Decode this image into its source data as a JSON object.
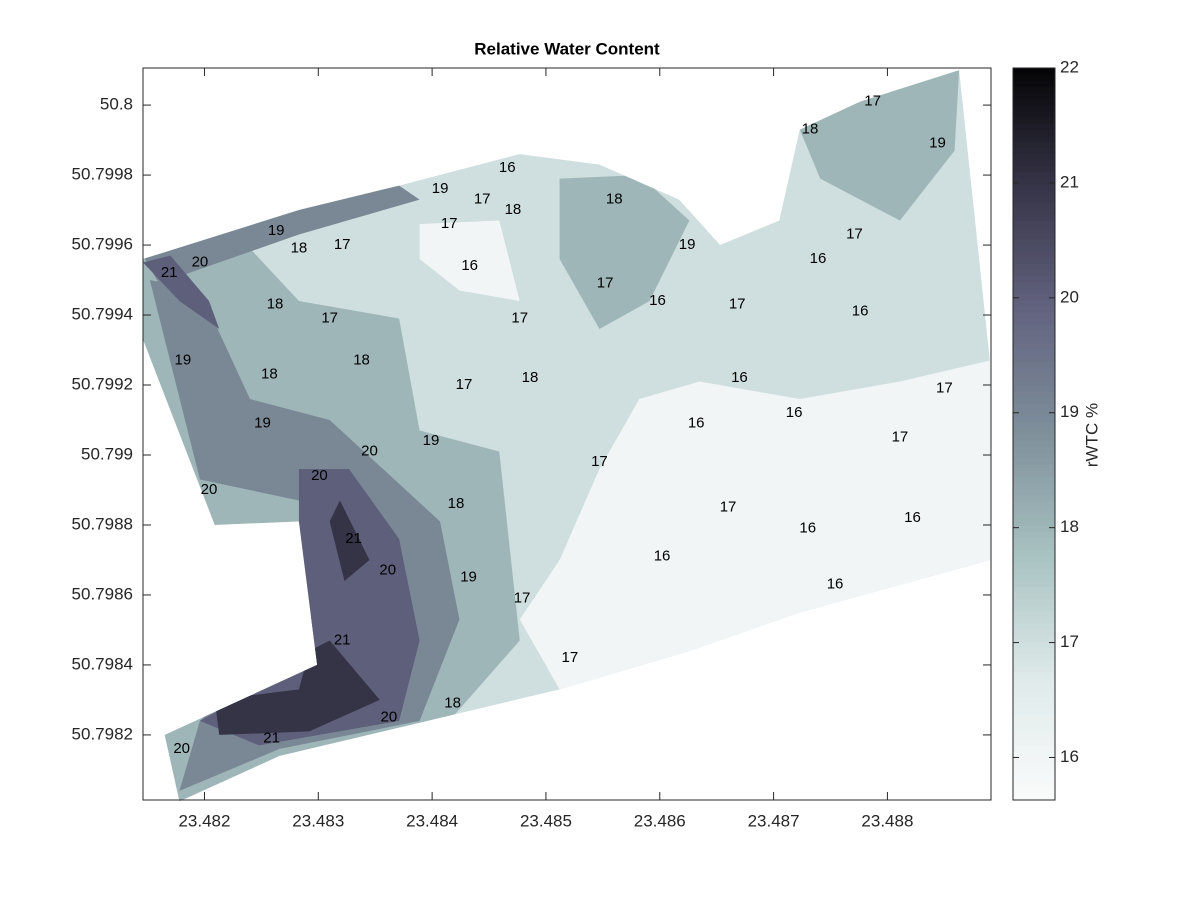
{
  "chart_data": {
    "type": "contourf",
    "title": "Relative Water Content",
    "xlim": [
      23.48146,
      23.48891
    ],
    "ylim": [
      50.798014,
      50.800106
    ],
    "xticks": [
      23.482,
      23.483,
      23.484,
      23.485,
      23.486,
      23.487,
      23.488
    ],
    "yticks": [
      50.7982,
      50.7984,
      50.7986,
      50.7988,
      50.799,
      50.7992,
      50.7994,
      50.7996,
      50.7998,
      50.8
    ],
    "colorbar": {
      "label": "rWTC %",
      "clim": [
        15.63,
        22
      ],
      "ticks": [
        16,
        17,
        18,
        19,
        20,
        21,
        22
      ],
      "colormap": [
        "#fafbfb",
        "#dfeaea",
        "#a9c2c2",
        "#7f909b",
        "#636480",
        "#38364a",
        "#050507"
      ]
    },
    "regions": [
      {
        "level": 17,
        "x": [
          23.48146,
          23.48146,
          23.48209,
          23.48283,
          23.48299,
          23.48165,
          23.48178,
          23.48266,
          23.48512,
          23.48626,
          23.48723,
          23.4889,
          23.4889,
          23.48877,
          23.48863,
          23.48776,
          23.48723,
          23.48705,
          23.48653,
          23.48617,
          23.48547,
          23.48477,
          23.48371,
          23.48283
        ],
        "y": [
          50.79956,
          50.79933,
          50.7988,
          50.79881,
          50.7984,
          50.7982,
          50.79801,
          50.79814,
          50.79833,
          50.79844,
          50.79855,
          50.7987,
          50.79927,
          50.79967,
          50.8001,
          50.80001,
          50.79993,
          50.79967,
          50.7996,
          50.79973,
          50.79983,
          50.79986,
          50.79977,
          50.7997
        ]
      },
      {
        "level": 16,
        "x": [
          23.48512,
          23.48626,
          23.48723,
          23.4889,
          23.4889,
          23.48811,
          23.48723,
          23.48635,
          23.48582,
          23.48547,
          23.48512,
          23.48477
        ],
        "y": [
          50.79833,
          50.79844,
          50.79855,
          50.7987,
          50.79927,
          50.79921,
          50.79916,
          50.79921,
          50.79916,
          50.79896,
          50.7987,
          50.79853
        ]
      },
      {
        "level": 16,
        "x": [
          23.48389,
          23.48459,
          23.48477,
          23.48424,
          23.48389
        ],
        "y": [
          50.79966,
          50.79967,
          50.79944,
          50.79947,
          50.79956
        ]
      },
      {
        "level": 18,
        "x": [
          23.48146,
          23.48146,
          23.48209,
          23.48283,
          23.48299,
          23.48165,
          23.48178,
          23.48266,
          23.48415,
          23.48477,
          23.48459,
          23.48389,
          23.48371,
          23.48283,
          23.4824
        ],
        "y": [
          50.79957,
          50.79933,
          50.7988,
          50.79881,
          50.7984,
          50.7982,
          50.79801,
          50.79814,
          50.79824,
          50.79847,
          50.79901,
          50.79907,
          50.79939,
          50.79944,
          50.79959
        ]
      },
      {
        "level": 18,
        "x": [
          23.48512,
          23.48582,
          23.48626,
          23.48591,
          23.48547,
          23.48512
        ],
        "y": [
          50.79979,
          50.7998,
          50.79967,
          50.79944,
          50.79936,
          50.79956
        ]
      },
      {
        "level": 18,
        "x": [
          23.48723,
          23.48776,
          23.48863,
          23.48859,
          23.48811,
          23.48776,
          23.48741
        ],
        "y": [
          50.79993,
          50.80001,
          50.8001,
          50.79987,
          50.79967,
          50.79973,
          50.79979
        ]
      },
      {
        "level": 19,
        "x": [
          23.48152,
          23.48196,
          23.48283,
          23.4831,
          23.48196,
          23.48178,
          23.48266,
          23.48389,
          23.48424,
          23.48407,
          23.4831,
          23.4824,
          23.48196
        ],
        "y": [
          50.7995,
          50.79893,
          50.79887,
          50.79859,
          50.79824,
          50.79804,
          50.79816,
          50.79824,
          50.79853,
          50.79881,
          50.7991,
          50.79916,
          50.79947
        ]
      },
      {
        "level": 19,
        "x": [
          23.48146,
          23.48283,
          23.48371,
          23.48389,
          23.48283,
          23.4816
        ],
        "y": [
          50.79957,
          50.79971,
          50.79977,
          50.79973,
          50.79963,
          50.79949
        ]
      },
      {
        "level": 20,
        "x": [
          23.48283,
          23.48292,
          23.48196,
          23.48248,
          23.48371,
          23.48389,
          23.48371,
          23.48327,
          23.48283
        ],
        "y": [
          50.79864,
          50.79841,
          50.79824,
          50.79817,
          50.79824,
          50.79847,
          50.79876,
          50.79896,
          50.79896
        ]
      },
      {
        "level": 20,
        "x": [
          23.48146,
          23.48178,
          23.48213,
          23.48204,
          23.4817
        ],
        "y": [
          50.79955,
          50.79944,
          50.79936,
          50.79944,
          50.79957
        ]
      },
      {
        "level": 21,
        "x": [
          23.48209,
          23.48283,
          23.48292,
          23.4831,
          23.48354,
          23.48292,
          23.48213
        ],
        "y": [
          50.7983,
          50.79833,
          50.79844,
          50.79847,
          50.7983,
          50.79821,
          50.7982
        ]
      },
      {
        "level": 21,
        "x": [
          23.48319,
          23.48345,
          23.48323,
          23.4831
        ],
        "y": [
          50.79887,
          50.7987,
          50.79864,
          50.79881
        ]
      }
    ],
    "contour_labels": {
      "x": [
        23.48466,
        23.48407,
        23.48444,
        23.48471,
        23.4856,
        23.48415,
        23.48263,
        23.48283,
        23.48321,
        23.48196,
        23.48169,
        23.48262,
        23.4831,
        23.48433,
        23.48477,
        23.48552,
        23.48598,
        23.48668,
        23.48624,
        23.48732,
        23.48787,
        23.48844,
        23.48771,
        23.48739,
        23.48776,
        23.48181,
        23.48257,
        23.48338,
        23.48428,
        23.48486,
        23.4867,
        23.48251,
        23.48399,
        23.48345,
        23.48301,
        23.48204,
        23.48421,
        23.48547,
        23.48632,
        23.48718,
        23.48811,
        23.4885,
        23.4866,
        23.4873,
        23.48602,
        23.48754,
        23.48432,
        23.48361,
        23.48331,
        23.48479,
        23.48521,
        23.48321,
        23.48418,
        23.48362,
        23.4818,
        23.48259,
        23.48822
      ],
      "y": [
        50.79982,
        50.79976,
        50.79973,
        50.7997,
        50.79973,
        50.79966,
        50.79964,
        50.79959,
        50.7996,
        50.79955,
        50.79952,
        50.79943,
        50.79939,
        50.79954,
        50.79939,
        50.79949,
        50.79944,
        50.79943,
        50.7996,
        50.79993,
        50.80001,
        50.79989,
        50.79963,
        50.79956,
        50.79941,
        50.79927,
        50.79923,
        50.79927,
        50.7992,
        50.79922,
        50.79922,
        50.79909,
        50.79904,
        50.79901,
        50.79894,
        50.7989,
        50.79886,
        50.79898,
        50.79909,
        50.79912,
        50.79905,
        50.79919,
        50.79885,
        50.79879,
        50.79871,
        50.79863,
        50.79865,
        50.79867,
        50.79876,
        50.79859,
        50.79842,
        50.79847,
        50.79829,
        50.79825,
        50.79816,
        50.79819,
        50.79882
      ],
      "values": [
        16,
        19,
        17,
        18,
        18,
        17,
        19,
        18,
        17,
        20,
        21,
        18,
        17,
        16,
        17,
        17,
        16,
        17,
        19,
        18,
        17,
        19,
        17,
        16,
        16,
        19,
        18,
        18,
        17,
        18,
        16,
        19,
        19,
        20,
        20,
        20,
        18,
        17,
        16,
        16,
        17,
        17,
        17,
        16,
        16,
        16,
        19,
        20,
        21,
        17,
        17,
        21,
        18,
        20,
        20,
        21,
        16
      ]
    }
  }
}
